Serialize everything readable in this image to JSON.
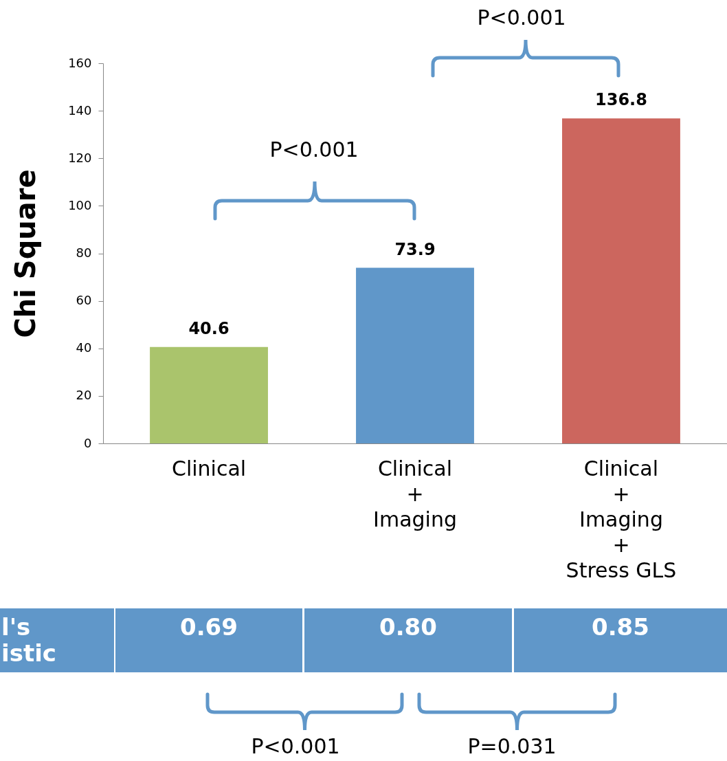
{
  "chart_data": {
    "type": "bar",
    "ylabel": "Chi Square",
    "categories": [
      "Clinical",
      "Clinical\n+\nImaging",
      "Clinical\n+\nImaging\n+\nStress GLS"
    ],
    "values": [
      40.6,
      73.9,
      136.8
    ],
    "colors": [
      "#aac46c",
      "#6097c9",
      "#cc665e"
    ],
    "ylim": [
      0,
      160
    ],
    "yticks": [
      0,
      20,
      40,
      60,
      80,
      100,
      120,
      140,
      160
    ],
    "data_labels": true,
    "annotations": [
      "P<0.001",
      "P<0.001",
      "l's\nistic",
      "0.69",
      "0.80",
      "0.85",
      "P<0.001",
      "P=0.031"
    ]
  }
}
